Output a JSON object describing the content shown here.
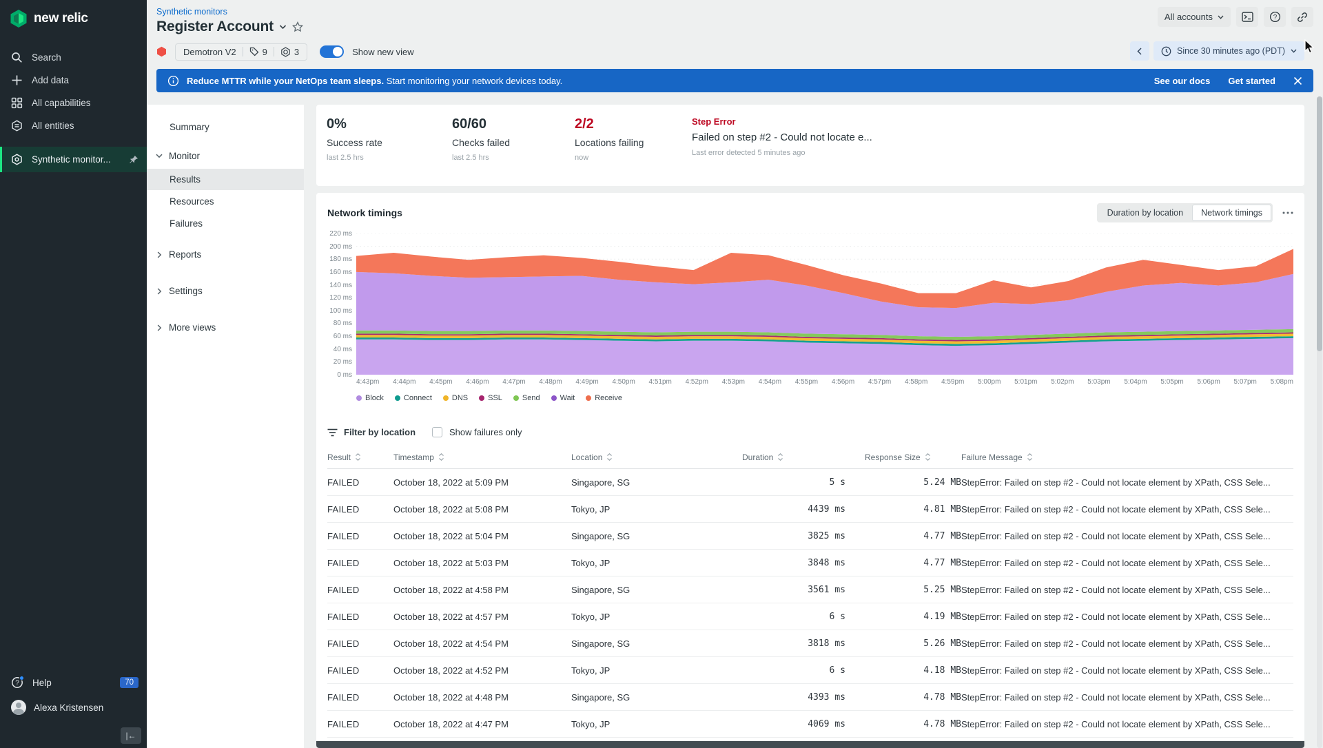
{
  "brand": {
    "name": "new relic"
  },
  "sidebar": {
    "items": [
      {
        "label": "Search"
      },
      {
        "label": "Add data"
      },
      {
        "label": "All capabilities"
      },
      {
        "label": "All entities"
      }
    ],
    "pinned": {
      "label": "Synthetic monitor..."
    },
    "help": {
      "label": "Help",
      "badge": "70"
    },
    "user": {
      "name": "Alexa Kristensen"
    }
  },
  "header": {
    "breadcrumb": "Synthetic monitors",
    "title": "Register Account",
    "account_switcher": "All accounts"
  },
  "monitor_bar": {
    "monitor_name": "Demotron V2",
    "tag_count": "9",
    "entity_count": "3",
    "toggle_label": "Show new view",
    "time_range": "Since 30 minutes ago (PDT)"
  },
  "banner": {
    "message_bold": "Reduce MTTR while your NetOps team sleeps.",
    "message_rest": " Start monitoring your network devices today.",
    "link_docs": "See our docs",
    "link_cta": "Get started"
  },
  "nav": {
    "summary": "Summary",
    "monitor_group": "Monitor",
    "results": "Results",
    "resources": "Resources",
    "failures": "Failures",
    "reports": "Reports",
    "settings": "Settings",
    "more_views": "More views"
  },
  "stats": {
    "success": {
      "value": "0%",
      "label": "Success rate",
      "sub": "last 2.5 hrs"
    },
    "checks": {
      "value": "60/60",
      "label": "Checks failed",
      "sub": "last 2.5 hrs"
    },
    "locations": {
      "value": "2/2",
      "label": "Locations failing",
      "sub": "now"
    },
    "error": {
      "title": "Step Error",
      "message": "Failed on step #2 - Could not locate e...",
      "sub": "Last error detected 5 minutes ago"
    }
  },
  "chart_section": {
    "title": "Network timings",
    "view_options": [
      "Duration by location",
      "Network timings"
    ],
    "selected_view": "Network timings"
  },
  "chart_data": {
    "type": "area",
    "stacked": true,
    "title": "Network timings",
    "unit": "ms",
    "ylim": [
      0,
      220
    ],
    "ytick_step": 20,
    "grid": true,
    "legend_position": "bottom",
    "x": [
      "4:43pm",
      "4:44pm",
      "4:45pm",
      "4:46pm",
      "4:47pm",
      "4:48pm",
      "4:49pm",
      "4:50pm",
      "4:51pm",
      "4:52pm",
      "4:53pm",
      "4:54pm",
      "4:55pm",
      "4:56pm",
      "4:57pm",
      "4:58pm",
      "4:59pm",
      "5:00pm",
      "5:01pm",
      "5:02pm",
      "5:03pm",
      "5:04pm",
      "5:05pm",
      "5:06pm",
      "5:07pm",
      "5:08pm"
    ],
    "series": [
      {
        "name": "Block",
        "color": "#b18ce0",
        "fill": "#c9a5ef",
        "values": [
          55,
          55,
          54,
          54,
          55,
          55,
          54,
          53,
          52,
          53,
          53,
          52,
          50,
          49,
          48,
          46,
          45,
          46,
          48,
          50,
          52,
          53,
          54,
          55,
          56,
          57
        ]
      },
      {
        "name": "Connect",
        "color": "#0f9b8f",
        "fill": "#16a08f",
        "values": [
          3,
          3,
          3,
          3,
          3,
          3,
          3,
          3,
          3,
          3,
          3,
          3,
          3,
          3,
          3,
          3,
          3,
          3,
          3,
          3,
          3,
          3,
          3,
          3,
          3,
          3
        ]
      },
      {
        "name": "DNS",
        "color": "#f0b428",
        "fill": "#f2bb31",
        "values": [
          4,
          4,
          4,
          4,
          4,
          4,
          4,
          4,
          4,
          4,
          4,
          4,
          4,
          4,
          4,
          4,
          4,
          4,
          4,
          4,
          4,
          4,
          4,
          4,
          4,
          4
        ]
      },
      {
        "name": "SSL",
        "color": "#a6256e",
        "fill": "#a62a6e",
        "values": [
          2,
          2,
          2,
          2,
          2,
          2,
          2,
          2,
          2,
          2,
          2,
          2,
          2,
          2,
          2,
          2,
          2,
          2,
          2,
          2,
          2,
          2,
          2,
          2,
          2,
          2
        ]
      },
      {
        "name": "Send",
        "color": "#7fc653",
        "fill": "#86c95c",
        "values": [
          5,
          5,
          5,
          5,
          5,
          5,
          5,
          5,
          5,
          5,
          5,
          5,
          5,
          5,
          5,
          5,
          5,
          5,
          5,
          5,
          5,
          5,
          5,
          5,
          5,
          5
        ]
      },
      {
        "name": "Wait",
        "color": "#8c55c8",
        "fill": "#c19aec",
        "values": [
          91,
          89,
          86,
          83,
          83,
          84,
          86,
          81,
          78,
          74,
          77,
          82,
          75,
          64,
          52,
          45,
          45,
          52,
          48,
          52,
          63,
          72,
          75,
          70,
          74,
          86
        ]
      },
      {
        "name": "Receive",
        "color": "#ee6e4d",
        "fill": "#f4775a",
        "values": [
          25,
          32,
          30,
          28,
          31,
          33,
          28,
          28,
          25,
          22,
          46,
          38,
          32,
          28,
          28,
          22,
          23,
          35,
          26,
          30,
          38,
          40,
          28,
          24,
          25,
          39
        ]
      }
    ]
  },
  "table": {
    "filter_label": "Filter by location",
    "failures_only_label": "Show failures only",
    "columns": [
      "Result",
      "Timestamp",
      "Location",
      "Duration",
      "Response Size",
      "Failure Message"
    ],
    "rows": [
      {
        "result": "FAILED",
        "timestamp": "October 18, 2022 at 5:09 PM",
        "location": "Singapore, SG",
        "duration": "5 s",
        "size": "5.24 MB",
        "message": "StepError: Failed on step #2 - Could not locate element by XPath, CSS Sele..."
      },
      {
        "result": "FAILED",
        "timestamp": "October 18, 2022 at 5:08 PM",
        "location": "Tokyo, JP",
        "duration": "4439 ms",
        "size": "4.81 MB",
        "message": "StepError: Failed on step #2 - Could not locate element by XPath, CSS Sele..."
      },
      {
        "result": "FAILED",
        "timestamp": "October 18, 2022 at 5:04 PM",
        "location": "Singapore, SG",
        "duration": "3825 ms",
        "size": "4.77 MB",
        "message": "StepError: Failed on step #2 - Could not locate element by XPath, CSS Sele..."
      },
      {
        "result": "FAILED",
        "timestamp": "October 18, 2022 at 5:03 PM",
        "location": "Tokyo, JP",
        "duration": "3848 ms",
        "size": "4.77 MB",
        "message": "StepError: Failed on step #2 - Could not locate element by XPath, CSS Sele..."
      },
      {
        "result": "FAILED",
        "timestamp": "October 18, 2022 at 4:58 PM",
        "location": "Singapore, SG",
        "duration": "3561 ms",
        "size": "5.25 MB",
        "message": "StepError: Failed on step #2 - Could not locate element by XPath, CSS Sele..."
      },
      {
        "result": "FAILED",
        "timestamp": "October 18, 2022 at 4:57 PM",
        "location": "Tokyo, JP",
        "duration": "6 s",
        "size": "4.19 MB",
        "message": "StepError: Failed on step #2 - Could not locate element by XPath, CSS Sele..."
      },
      {
        "result": "FAILED",
        "timestamp": "October 18, 2022 at 4:54 PM",
        "location": "Singapore, SG",
        "duration": "3818 ms",
        "size": "5.26 MB",
        "message": "StepError: Failed on step #2 - Could not locate element by XPath, CSS Sele..."
      },
      {
        "result": "FAILED",
        "timestamp": "October 18, 2022 at 4:52 PM",
        "location": "Tokyo, JP",
        "duration": "6 s",
        "size": "4.18 MB",
        "message": "StepError: Failed on step #2 - Could not locate element by XPath, CSS Sele..."
      },
      {
        "result": "FAILED",
        "timestamp": "October 18, 2022 at 4:48 PM",
        "location": "Singapore, SG",
        "duration": "4393 ms",
        "size": "4.78 MB",
        "message": "StepError: Failed on step #2 - Could not locate element by XPath, CSS Sele..."
      },
      {
        "result": "FAILED",
        "timestamp": "October 18, 2022 at 4:47 PM",
        "location": "Tokyo, JP",
        "duration": "4069 ms",
        "size": "4.78 MB",
        "message": "StepError: Failed on step #2 - Could not locate element by XPath, CSS Sele..."
      }
    ]
  }
}
